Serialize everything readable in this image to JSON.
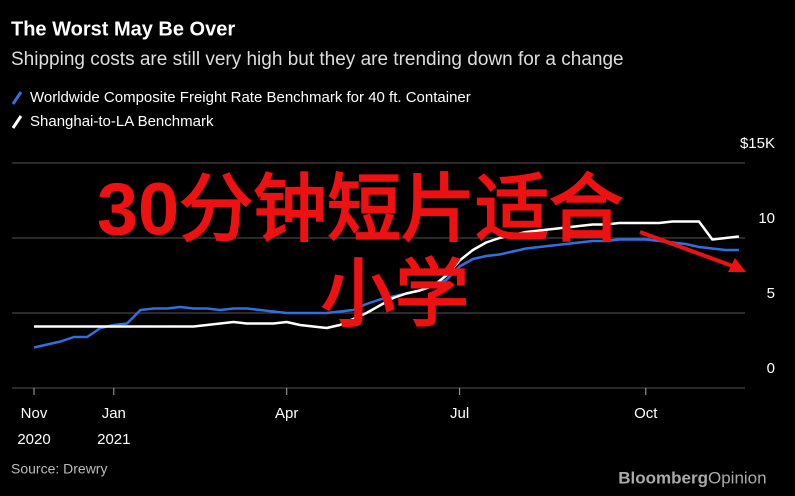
{
  "chart_data": {
    "type": "line",
    "title": "The Worst May Be Over",
    "subtitle": "Shipping costs are still very high but they are trending down for a change",
    "source": "Source: Drewry",
    "brand": [
      "Bloomberg",
      "Opinion"
    ],
    "annotations": [
      "30分钟短片适合",
      "小学"
    ],
    "categories": [
      "Nov 2020",
      null,
      null,
      null,
      null,
      null,
      "Jan 2021",
      null,
      null,
      null,
      null,
      null,
      null,
      null,
      null,
      null,
      null,
      null,
      null,
      "Apr",
      null,
      null,
      null,
      null,
      null,
      null,
      null,
      null,
      null,
      null,
      null,
      null,
      "Jul",
      null,
      null,
      null,
      null,
      null,
      null,
      null,
      null,
      null,
      null,
      null,
      null,
      null,
      "Oct",
      null,
      null,
      null,
      null,
      null,
      null,
      null
    ],
    "series": [
      {
        "name": "Worldwide Composite Freight Rate Benchmark for 40 ft. Container",
        "color": "#2f6fe0",
        "values": [
          2.7,
          2.9,
          3.1,
          3.4,
          3.4,
          4.0,
          4.2,
          4.3,
          5.2,
          5.3,
          5.3,
          5.4,
          5.3,
          5.3,
          5.2,
          5.3,
          5.3,
          5.2,
          5.1,
          5.0,
          5.0,
          5.0,
          5.0,
          5.1,
          5.2,
          5.6,
          5.9,
          6.1,
          6.3,
          6.5,
          6.8,
          7.2,
          8.1,
          8.6,
          8.8,
          8.9,
          9.1,
          9.3,
          9.4,
          9.5,
          9.6,
          9.7,
          9.8,
          9.8,
          9.9,
          9.9,
          9.9,
          9.8,
          9.7,
          9.6,
          9.4,
          9.3,
          9.2,
          9.2
        ]
      },
      {
        "name": "Shanghai-to-LA Benchmark",
        "color": "#ffffff",
        "values": [
          4.1,
          4.1,
          4.1,
          4.1,
          4.1,
          4.1,
          4.1,
          4.1,
          4.1,
          4.1,
          4.1,
          4.1,
          4.1,
          4.2,
          4.3,
          4.4,
          4.3,
          4.3,
          4.3,
          4.4,
          4.2,
          4.1,
          4.0,
          4.2,
          4.6,
          5.0,
          5.5,
          6.0,
          6.3,
          6.5,
          6.8,
          7.5,
          8.5,
          9.2,
          9.7,
          10.0,
          10.2,
          10.4,
          10.5,
          10.6,
          10.7,
          10.8,
          10.9,
          10.9,
          11.0,
          11.0,
          11.0,
          11.0,
          11.1,
          11.1,
          11.1,
          9.9,
          10.0,
          10.1
        ]
      }
    ],
    "ylim": [
      0,
      15
    ],
    "yticks": [
      0,
      5,
      10,
      {
        "value": 15,
        "label": "$15K"
      }
    ],
    "grid": true
  }
}
